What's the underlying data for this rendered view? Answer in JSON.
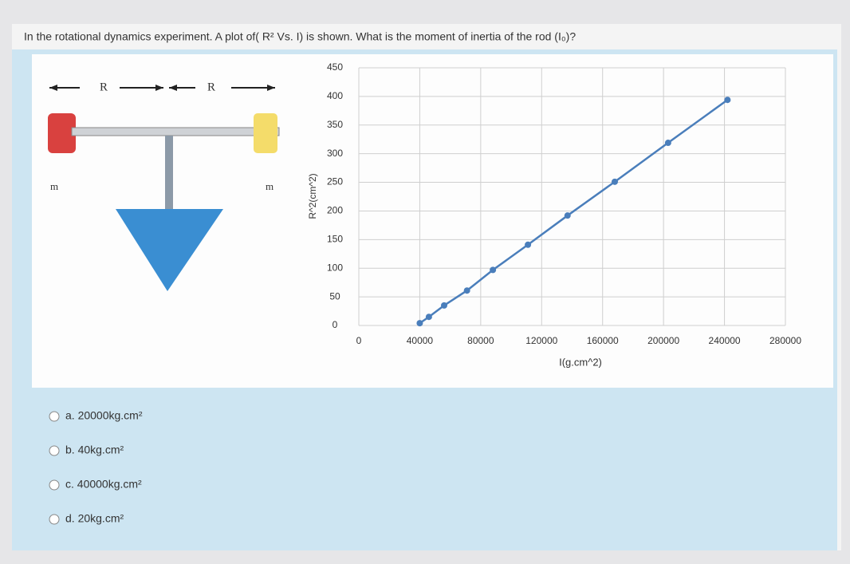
{
  "question": "In the rotational dynamics experiment. A plot of( R² Vs. I) is shown. What is the moment of inertia of the rod (I₀)?",
  "diagram": {
    "labels": [
      "R",
      "R",
      "m",
      "m"
    ]
  },
  "chart_data": {
    "type": "line",
    "x_label": "I(g.cm^2)",
    "y_label": "R^2(cm^2)",
    "x": [
      40000,
      46000,
      56000,
      71000,
      88000,
      111000,
      137000,
      168000,
      203000,
      242000
    ],
    "series": [
      {
        "color": "#4a7ebb",
        "values": [
          4,
          15,
          35,
          61,
          97,
          141,
          192,
          251,
          319,
          394
        ]
      }
    ],
    "xlim": [
      0,
      280000
    ],
    "xticks": [
      0,
      40000,
      80000,
      120000,
      160000,
      200000,
      240000,
      280000
    ],
    "ylim": [
      0,
      450
    ],
    "yticks": [
      0,
      50,
      100,
      150,
      200,
      250,
      300,
      350,
      400,
      450
    ],
    "grid": true
  },
  "options": [
    "a. 20000kg.cm²",
    "b. 40kg.cm²",
    "c. 40000kg.cm²",
    "d. 20kg.cm²"
  ]
}
